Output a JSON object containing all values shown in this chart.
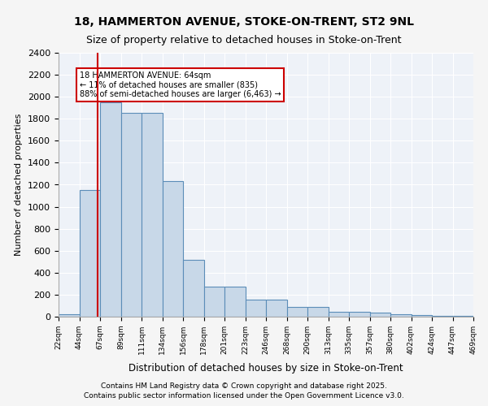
{
  "title1": "18, HAMMERTON AVENUE, STOKE-ON-TRENT, ST2 9NL",
  "title2": "Size of property relative to detached houses in Stoke-on-Trent",
  "xlabel": "Distribution of detached houses by size in Stoke-on-Trent",
  "ylabel": "Number of detached properties",
  "bin_labels": [
    "22sqm",
    "44sqm",
    "67sqm",
    "89sqm",
    "111sqm",
    "134sqm",
    "156sqm",
    "178sqm",
    "201sqm",
    "223sqm",
    "246sqm",
    "268sqm",
    "290sqm",
    "313sqm",
    "335sqm",
    "357sqm",
    "380sqm",
    "402sqm",
    "424sqm",
    "447sqm",
    "469sqm"
  ],
  "bar_heights": [
    22,
    1150,
    1950,
    1850,
    1850,
    1230,
    520,
    275,
    270,
    155,
    155,
    90,
    90,
    45,
    45,
    40,
    22,
    15,
    8,
    8
  ],
  "bar_color": "#c8d8e8",
  "bar_edge_color": "#5b8db8",
  "background_color": "#eef2f8",
  "grid_color": "#ffffff",
  "vline_x": 1,
  "vline_color": "#cc0000",
  "annotation_text": "18 HAMMERTON AVENUE: 64sqm\n← 11% of detached houses are smaller (835)\n88% of semi-detached houses are larger (6,463) →",
  "annotation_box_color": "#cc0000",
  "ylim": [
    0,
    2400
  ],
  "yticks": [
    0,
    200,
    400,
    600,
    800,
    1000,
    1200,
    1400,
    1600,
    1800,
    2000,
    2200,
    2400
  ],
  "footnote1": "Contains HM Land Registry data © Crown copyright and database right 2025.",
  "footnote2": "Contains public sector information licensed under the Open Government Licence v3.0."
}
